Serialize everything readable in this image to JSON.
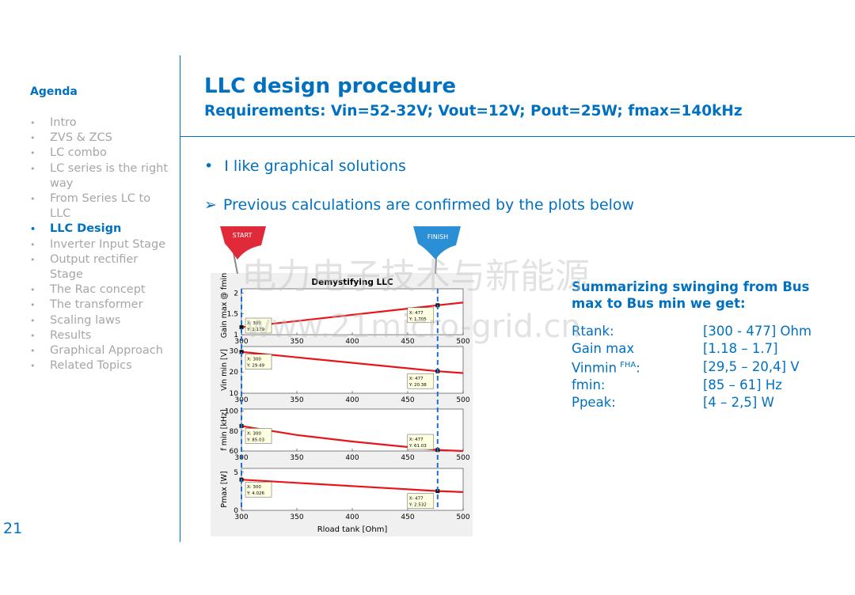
{
  "slide": {
    "agenda_title": "Agenda",
    "agenda": [
      {
        "text": "Intro",
        "active": false
      },
      {
        "text": "ZVS & ZCS",
        "active": false
      },
      {
        "text": "LC combo",
        "active": false
      },
      {
        "text": "LC series is the right way",
        "active": false
      },
      {
        "text": "From Series LC to LLC",
        "active": false
      },
      {
        "text": "LLC Design",
        "active": true
      },
      {
        "text": "Inverter Input Stage",
        "active": false
      },
      {
        "text": "Output rectifier Stage",
        "active": false
      },
      {
        "text": "The Rac concept",
        "active": false
      },
      {
        "text": "The transformer",
        "active": false
      },
      {
        "text": "Scaling laws",
        "active": false
      },
      {
        "text": "Results",
        "active": false
      },
      {
        "text": "Graphical Approach",
        "active": false
      },
      {
        "text": "Related Topics",
        "active": false
      }
    ],
    "page_number": "21",
    "title": "LLC design procedure",
    "subtitle": "Requirements: Vin=52-32V; Vout=12V; Pout=25W; fmax=140kHz",
    "bullet1": "I like graphical solutions",
    "bullet2": "Previous calculations are confirmed by the plots below",
    "flag_start": "START",
    "flag_finish": "FINISH",
    "watermark_cn": "电力电子技术与新能源",
    "watermark_url": "www.21micro-grid.cn"
  },
  "chart_data": {
    "type": "line",
    "title": "Demystifying LLC",
    "xlabel": "Rload tank [Ohm]",
    "xlim": [
      300,
      500
    ],
    "xticks": [
      300,
      350,
      400,
      450,
      500
    ],
    "cursors": [
      300,
      477
    ],
    "subplots": [
      {
        "ylabel": "Gain max @ fmin",
        "ylim": [
          1,
          2.1
        ],
        "yticks": [
          1,
          1.5,
          2
        ],
        "color": "#e8141b",
        "x": [
          300,
          477,
          500
        ],
        "values": [
          1.179,
          1.705,
          1.77
        ],
        "tips": [
          {
            "x": "X: 300",
            "y": "Y: 1.179"
          },
          {
            "x": "X: 477",
            "y": "Y: 1.705"
          }
        ]
      },
      {
        "ylabel": "Vin min [V]",
        "ylim": [
          10,
          32
        ],
        "yticks": [
          10,
          20,
          30
        ],
        "color": "#e8141b",
        "x": [
          300,
          477,
          500
        ],
        "values": [
          29.49,
          20.38,
          19.5
        ],
        "tips": [
          {
            "x": "X: 300",
            "y": "Y: 29.49"
          },
          {
            "x": "X: 477",
            "y": "Y: 20.38"
          }
        ]
      },
      {
        "ylabel": "f min [kHz]",
        "ylim": [
          60,
          102
        ],
        "yticks": [
          60,
          80,
          100
        ],
        "color": "#e8141b",
        "x": [
          300,
          350,
          400,
          477,
          500
        ],
        "values": [
          85.03,
          76,
          69.5,
          61.03,
          60
        ],
        "tips": [
          {
            "x": "X: 300",
            "y": "Y: 85.03"
          },
          {
            "x": "X: 477",
            "y": "Y: 61.03"
          }
        ]
      },
      {
        "ylabel": "Pmax [W]",
        "ylim": [
          0,
          5.5
        ],
        "yticks": [
          0,
          5
        ],
        "color": "#e8141b",
        "x": [
          300,
          477,
          500
        ],
        "values": [
          4.026,
          2.532,
          2.4
        ],
        "tips": [
          {
            "x": "X: 300",
            "y": "Y: 4.026"
          },
          {
            "x": "X: 477",
            "y": "Y: 2.532"
          }
        ]
      }
    ]
  },
  "summary": {
    "heading": "Summarizing swinging from Bus max to Bus min we get:",
    "rows": [
      {
        "label": "Rtank:",
        "value": "[300 - 477] Ohm"
      },
      {
        "label": "Gain max",
        "value": "[1.18 – 1.7]"
      },
      {
        "label": "Vinmin",
        "sup": "FHA",
        "suffix": ":",
        "value": "[29,5 – 20,4] V"
      },
      {
        "label": "fmin:",
        "value": "[85 – 61] Hz"
      },
      {
        "label": "Ppeak:",
        "value": "[4 – 2,5] W"
      }
    ]
  }
}
